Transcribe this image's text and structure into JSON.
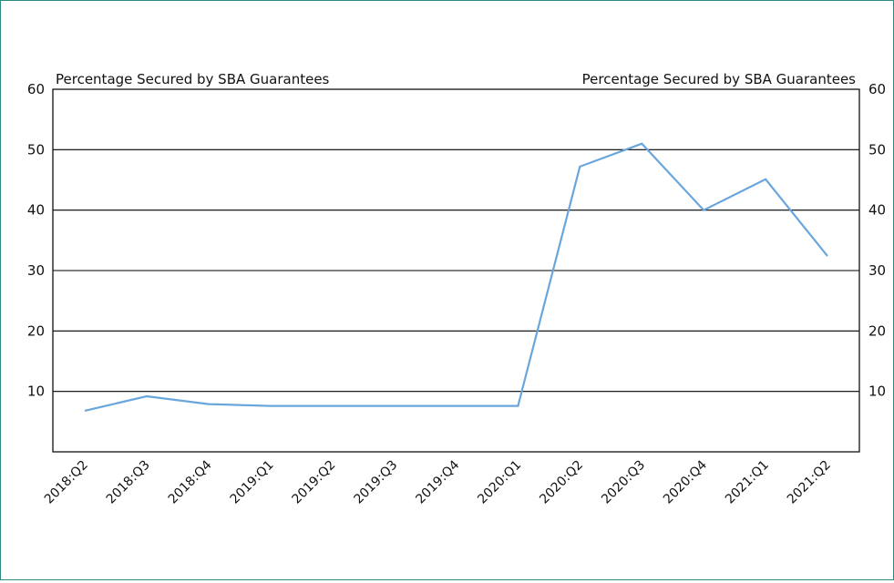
{
  "chart_data": {
    "type": "line",
    "categories": [
      "2018:Q2",
      "2018:Q3",
      "2018:Q4",
      "2019:Q1",
      "2019:Q2",
      "2019:Q3",
      "2019:Q4",
      "2020:Q1",
      "2020:Q2",
      "2020:Q3",
      "2020:Q4",
      "2021:Q1",
      "2021:Q2"
    ],
    "series": [
      {
        "values": [
          6.8,
          9.2,
          7.9,
          7.6,
          7.6,
          7.6,
          7.6,
          7.6,
          47.2,
          51.0,
          40.0,
          45.1,
          32.4
        ]
      }
    ],
    "left_axis_label": "Percentage Secured by SBA Guarantees",
    "right_axis_label": "Percentage Secured by SBA Guarantees",
    "ylim": [
      0,
      60
    ],
    "yticks": [
      10,
      20,
      30,
      40,
      50,
      60
    ],
    "grid": "horizontal",
    "line_color": "#6aa6dc",
    "grid_color": "#000000"
  }
}
